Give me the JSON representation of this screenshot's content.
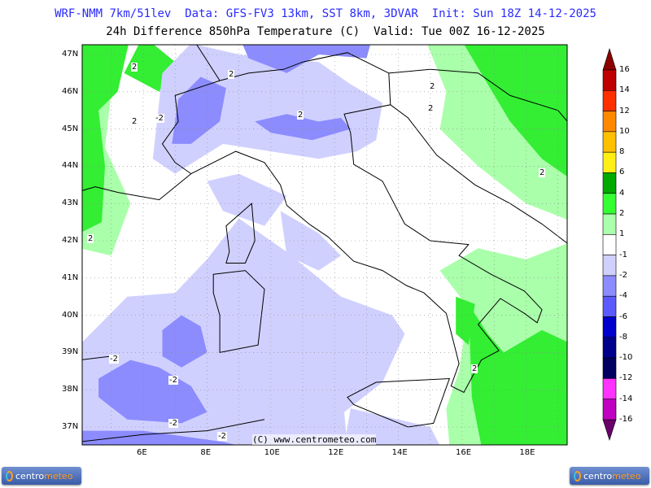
{
  "header": {
    "line1": "WRF-NMM 7km/51lev  Data: GFS-FV3 13km, SST 8km, 3DVAR  Init: Sun 18Z 14-12-2025",
    "line2": "24h Difference 850hPa Temperature (C)  Valid: Tue 00Z 16-12-2025"
  },
  "axes": {
    "lat_labels": [
      "47N",
      "46N",
      "45N",
      "44N",
      "43N",
      "42N",
      "41N",
      "40N",
      "39N",
      "38N",
      "37N"
    ],
    "lon_labels": [
      "6E",
      "8E",
      "10E",
      "12E",
      "14E",
      "16E",
      "18E"
    ]
  },
  "contour_labels": [
    "2",
    "2",
    "2",
    "2",
    "2",
    "2",
    "2",
    "2",
    "2",
    "-2",
    "-2",
    "-2",
    "-2",
    "-2"
  ],
  "copyright": "(C) www.centrometeo.com",
  "colorbar": {
    "labels": [
      "16",
      "14",
      "12",
      "10",
      "8",
      "6",
      "4",
      "2",
      "1",
      "-1",
      "-2",
      "-4",
      "-6",
      "-8",
      "-10",
      "-12",
      "-14",
      "-16"
    ],
    "colors": [
      "#c00000",
      "#ff3000",
      "#ff8800",
      "#ffc000",
      "#ffef14",
      "#00aa00",
      "#33ff33",
      "#aaffaa",
      "#ffffff",
      "#d0d0ff",
      "#8c8cff",
      "#5a5aff",
      "#0000cc",
      "#00008c",
      "#000060",
      "#ff33ff",
      "#c000c0"
    ],
    "top_color": "#8c0000",
    "bottom_color": "#6a006a"
  },
  "logos": {
    "left": {
      "part1": "centro",
      "part2": "meteo"
    },
    "right": {
      "part1": "centro",
      "part2": "meteo"
    }
  }
}
